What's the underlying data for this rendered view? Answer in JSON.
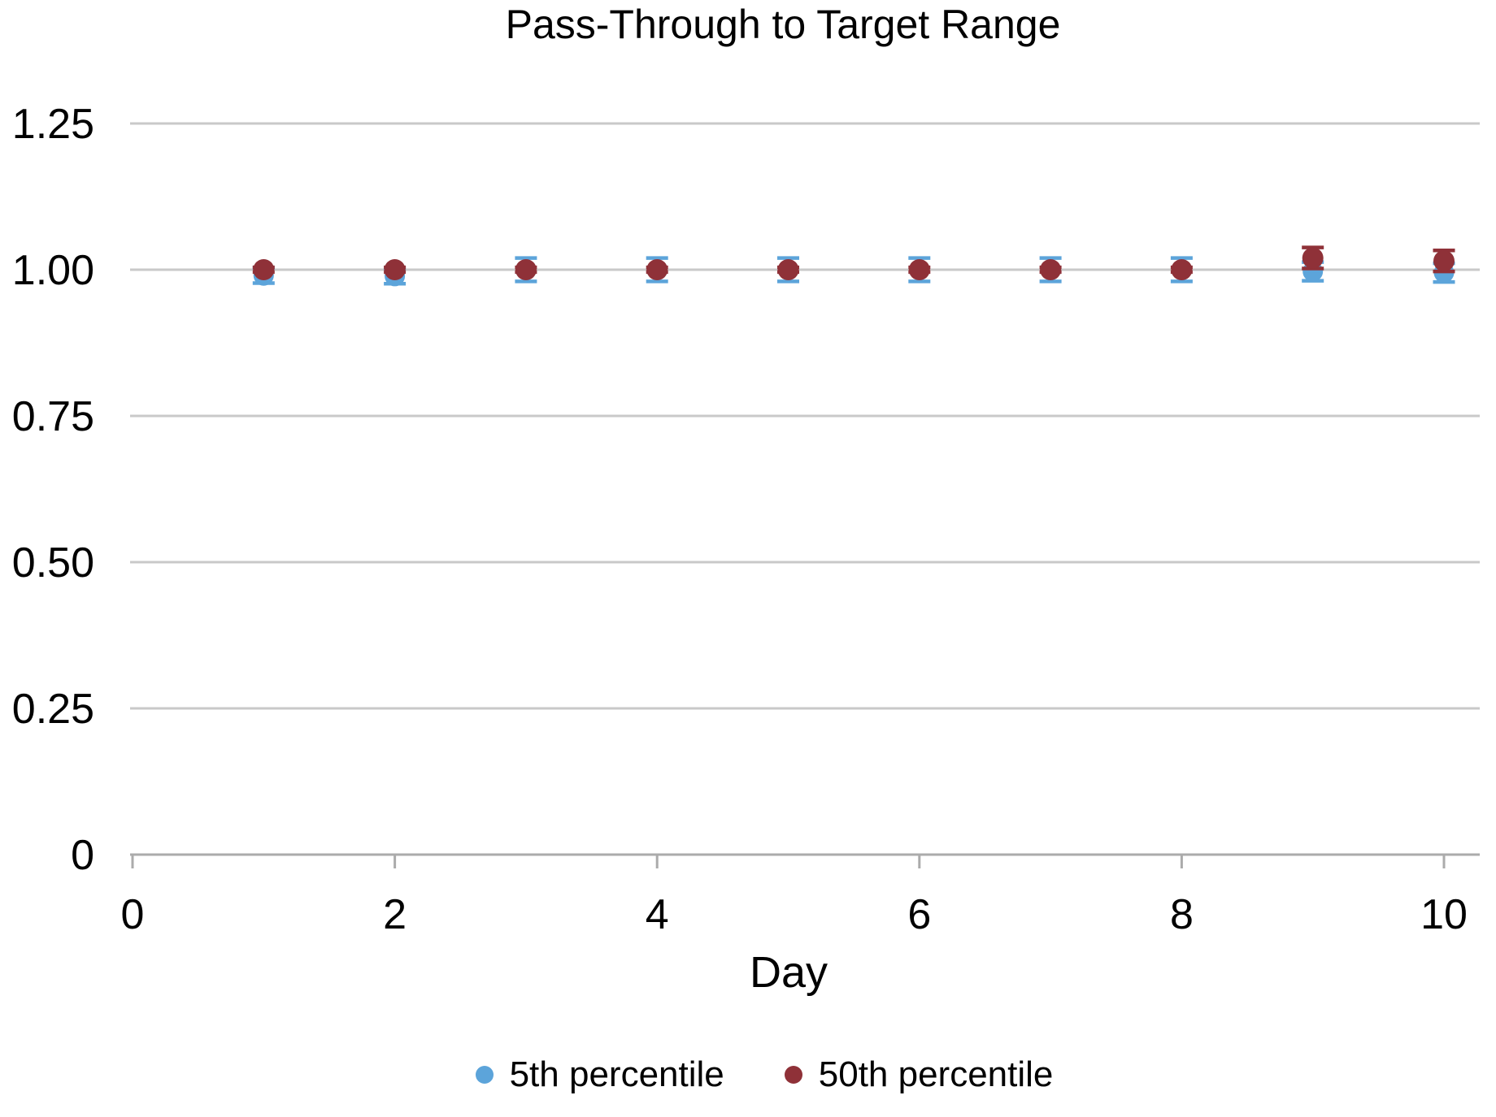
{
  "chart_data": {
    "type": "scatter",
    "title": "Pass-Through to Target Range",
    "xlabel": "Day",
    "ylabel": "",
    "x": [
      1,
      2,
      3,
      4,
      5,
      6,
      7,
      8,
      9,
      10
    ],
    "series": [
      {
        "name": "5th percentile",
        "color": "#5CA4DA",
        "values": [
          0.99,
          0.989,
          1.0,
          1.0,
          1.0,
          1.0,
          1.0,
          1.0,
          0.997,
          0.995
        ],
        "err": [
          0.013,
          0.013,
          0.02,
          0.02,
          0.02,
          0.02,
          0.02,
          0.02,
          0.016,
          0.016
        ]
      },
      {
        "name": "50th percentile",
        "color": "#8F3138",
        "values": [
          1.0,
          1.0,
          1.0,
          1.0,
          1.0,
          1.0,
          1.0,
          1.0,
          1.02,
          1.015
        ],
        "err": [
          0.004,
          0.004,
          0.004,
          0.004,
          0.004,
          0.004,
          0.004,
          0.004,
          0.018,
          0.018
        ]
      }
    ],
    "xlim": [
      0,
      10.3
    ],
    "ylim": [
      0,
      1.3
    ],
    "x_ticks": {
      "values": [
        0,
        2,
        4,
        6,
        8,
        10
      ],
      "labels": [
        "0",
        "2",
        "4",
        "6",
        "8",
        "10"
      ]
    },
    "y_ticks": {
      "values": [
        0,
        0.25,
        0.5,
        0.75,
        1.0,
        1.25
      ],
      "labels": [
        "0",
        "0.25",
        "0.50",
        "0.75",
        "1.00",
        "1.25"
      ]
    },
    "grid": "horizontal-only",
    "legend_position": "bottom",
    "grid_color": "#C9C9C9",
    "axis_color": "#ABABAB",
    "text_color": "#000000"
  }
}
